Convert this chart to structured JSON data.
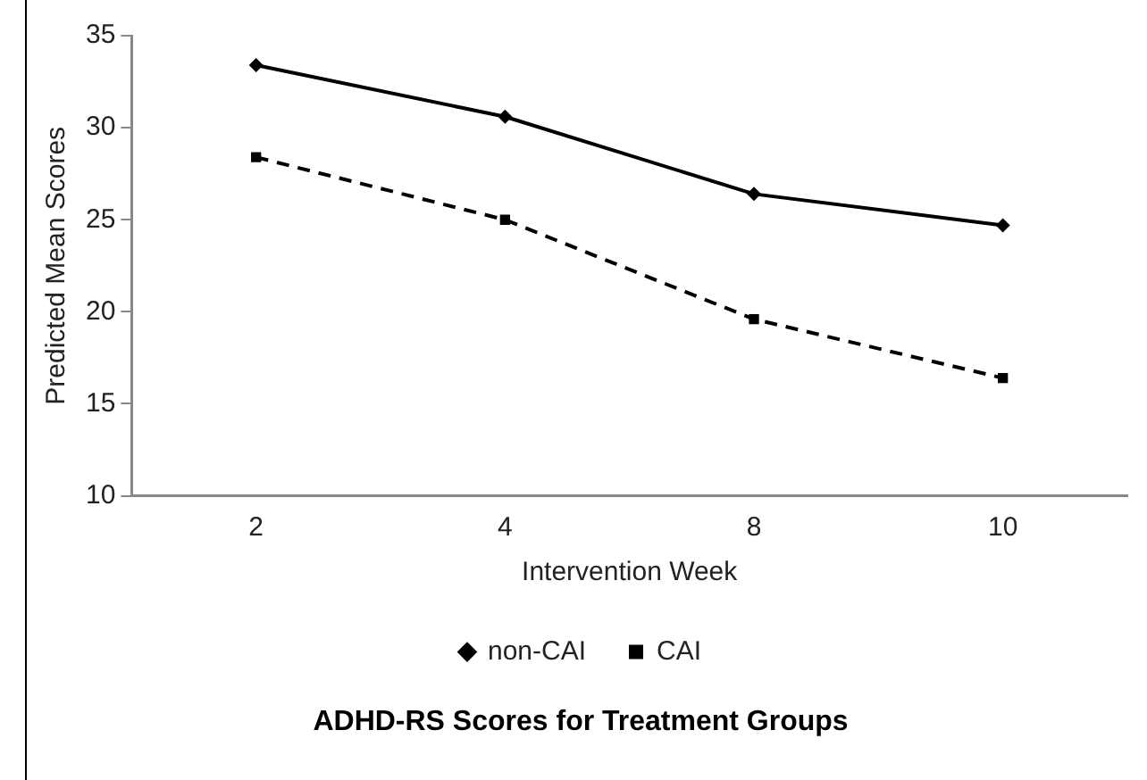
{
  "chart_data": {
    "type": "line",
    "title": "ADHD-RS Scores for Treatment Groups",
    "xlabel": "Intervention Week",
    "ylabel": "Predicted Mean Scores",
    "categories": [
      "2",
      "4",
      "8",
      "10"
    ],
    "series": [
      {
        "name": "non-CAI",
        "color": "#000000",
        "values": [
          33.4,
          30.6,
          26.4,
          24.7
        ],
        "marker": "diamond",
        "line_style": "solid"
      },
      {
        "name": "CAI",
        "color": "#000000",
        "values": [
          28.4,
          25.0,
          19.6,
          16.4
        ],
        "marker": "square",
        "line_style": "dashed"
      }
    ],
    "ylim": [
      10,
      35
    ],
    "yticks": [
      10,
      15,
      20,
      25,
      30,
      35
    ],
    "grid": false,
    "legend": "bottom"
  }
}
